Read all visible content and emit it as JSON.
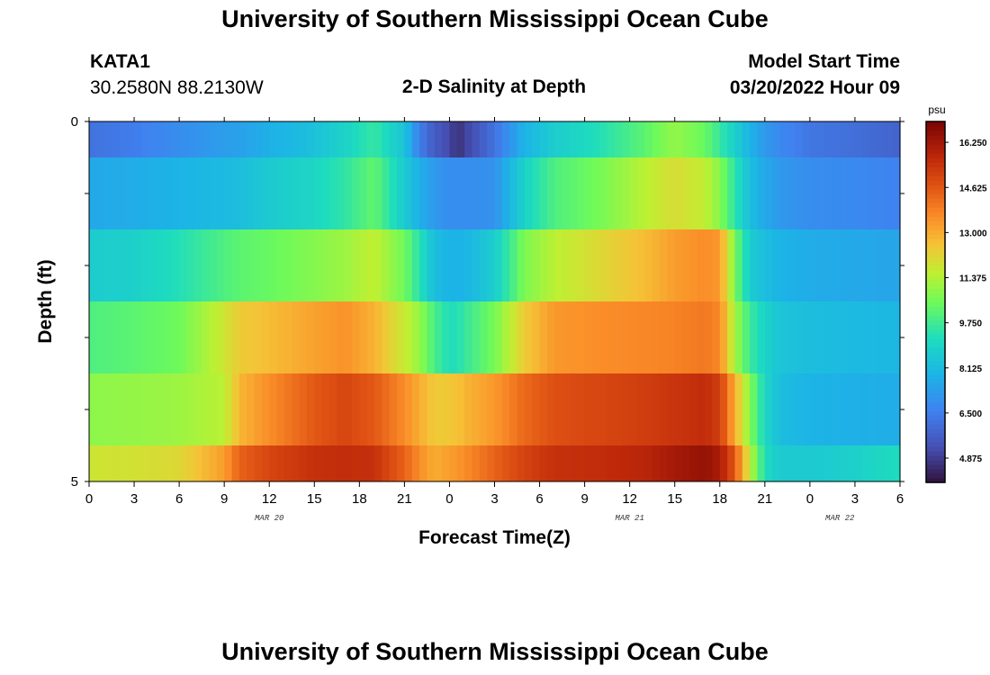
{
  "page": {
    "title_top": "University of Southern Mississippi Ocean Cube",
    "title_bottom": "University of Southern Mississippi Ocean Cube",
    "station": {
      "id": "KATA1",
      "coords": "30.2580N  88.2130W"
    },
    "plot_title": "2-D Salinity at Depth",
    "model_start": {
      "label": "Model Start Time",
      "value": "03/20/2022 Hour 09"
    }
  },
  "chart_data": {
    "type": "heatmap",
    "title": "2-D Salinity at Depth",
    "xlabel": "Forecast Time(Z)",
    "ylabel": "Depth (ft)",
    "x_range_hours": [
      0,
      54
    ],
    "x_step_hours": 0.5,
    "x_tick_labels": [
      "0",
      "3",
      "6",
      "9",
      "12",
      "15",
      "18",
      "21",
      "0",
      "3",
      "6",
      "9",
      "12",
      "15",
      "18",
      "21",
      "0",
      "3",
      "6"
    ],
    "date_labels": [
      {
        "label": "MAR 20",
        "at_hour": 12
      },
      {
        "label": "MAR 21",
        "at_hour": 36
      },
      {
        "label": "MAR 22",
        "at_hour": 50
      }
    ],
    "y_range": [
      0,
      5
    ],
    "y_tick_labels": [
      "0",
      "5"
    ],
    "depth_bands": [
      {
        "top": 0.0,
        "bottom": 0.5
      },
      {
        "top": 0.5,
        "bottom": 1.5
      },
      {
        "top": 1.5,
        "bottom": 2.5
      },
      {
        "top": 2.5,
        "bottom": 3.5
      },
      {
        "top": 3.5,
        "bottom": 4.5
      },
      {
        "top": 4.5,
        "bottom": 5.0
      }
    ],
    "salinity_keyframes": [
      {
        "hour": 0,
        "values": [
          6.2,
          7.6,
          8.7,
          10.0,
          10.9,
          11.8
        ]
      },
      {
        "hour": 3,
        "values": [
          6.5,
          7.7,
          8.8,
          10.2,
          11.0,
          11.9
        ]
      },
      {
        "hour": 6,
        "values": [
          6.9,
          7.9,
          9.3,
          10.5,
          11.1,
          12.1
        ]
      },
      {
        "hour": 9,
        "values": [
          7.3,
          8.1,
          10.0,
          11.8,
          11.5,
          13.3
        ]
      },
      {
        "hour": 10,
        "values": [
          7.4,
          8.2,
          10.2,
          12.4,
          12.8,
          14.4
        ]
      },
      {
        "hour": 12,
        "values": [
          7.8,
          8.6,
          10.4,
          12.7,
          13.6,
          15.0
        ]
      },
      {
        "hour": 15,
        "values": [
          8.3,
          9.0,
          10.8,
          13.2,
          14.6,
          15.5
        ]
      },
      {
        "hour": 17,
        "values": [
          8.9,
          9.5,
          11.1,
          13.5,
          15.0,
          15.6
        ]
      },
      {
        "hour": 19,
        "values": [
          9.6,
          10.3,
          11.6,
          12.9,
          14.6,
          15.5
        ]
      },
      {
        "hour": 21,
        "values": [
          8.4,
          8.6,
          10.5,
          11.7,
          13.6,
          14.4
        ]
      },
      {
        "hour": 22,
        "values": [
          6.5,
          7.8,
          9.4,
          11.0,
          13.0,
          13.6
        ]
      },
      {
        "hour": 23,
        "values": [
          5.6,
          7.2,
          8.2,
          9.9,
          12.4,
          13.0
        ]
      },
      {
        "hour": 24,
        "values": [
          5.2,
          6.9,
          7.9,
          9.2,
          12.5,
          13.3
        ]
      },
      {
        "hour": 24.5,
        "values": [
          4.6,
          6.9,
          7.9,
          9.3,
          12.6,
          13.4
        ]
      },
      {
        "hour": 25,
        "values": [
          5.0,
          6.9,
          7.9,
          9.6,
          12.8,
          13.6
        ]
      },
      {
        "hour": 27,
        "values": [
          6.2,
          7.0,
          8.7,
          10.6,
          13.4,
          14.4
        ]
      },
      {
        "hour": 29,
        "values": [
          7.9,
          8.9,
          10.7,
          12.4,
          14.3,
          15.1
        ]
      },
      {
        "hour": 31,
        "values": [
          8.7,
          10.0,
          11.5,
          13.4,
          14.8,
          15.5
        ]
      },
      {
        "hour": 34,
        "values": [
          9.3,
          10.6,
          12.1,
          13.6,
          15.0,
          15.6
        ]
      },
      {
        "hour": 37,
        "values": [
          10.2,
          11.5,
          12.7,
          13.7,
          15.2,
          15.8
        ]
      },
      {
        "hour": 39,
        "values": [
          11.0,
          12.0,
          13.3,
          13.8,
          15.4,
          16.2
        ]
      },
      {
        "hour": 41,
        "values": [
          10.4,
          11.6,
          13.6,
          14.0,
          15.6,
          16.5
        ]
      },
      {
        "hour": 42,
        "values": [
          9.6,
          10.8,
          13.4,
          13.7,
          15.2,
          16.1
        ]
      },
      {
        "hour": 43,
        "values": [
          8.8,
          9.5,
          10.6,
          11.2,
          13.0,
          14.6
        ]
      },
      {
        "hour": 44,
        "values": [
          7.9,
          8.2,
          8.7,
          9.7,
          10.8,
          11.6
        ]
      },
      {
        "hour": 45,
        "values": [
          7.2,
          7.6,
          8.2,
          8.9,
          9.0,
          9.2
        ]
      },
      {
        "hour": 46,
        "values": [
          6.8,
          7.2,
          7.9,
          8.4,
          8.2,
          8.6
        ]
      },
      {
        "hour": 48,
        "values": [
          6.3,
          6.9,
          7.7,
          8.2,
          7.9,
          8.6
        ]
      },
      {
        "hour": 51,
        "values": [
          6.1,
          6.8,
          7.6,
          8.1,
          7.8,
          8.8
        ]
      },
      {
        "hour": 54,
        "values": [
          5.8,
          6.6,
          7.5,
          8.0,
          7.7,
          9.2
        ]
      }
    ],
    "colorbar": {
      "unit": "psu",
      "min": 4.0,
      "max": 17.0,
      "tick_values": [
        16.25,
        14.625,
        13.0,
        11.375,
        9.75,
        8.125,
        6.5,
        4.875
      ],
      "tick_labels": [
        "16.250",
        "14.625",
        "13.000",
        "11.375",
        "9.750",
        "8.125",
        "6.500",
        "4.875"
      ]
    },
    "grid": false
  }
}
